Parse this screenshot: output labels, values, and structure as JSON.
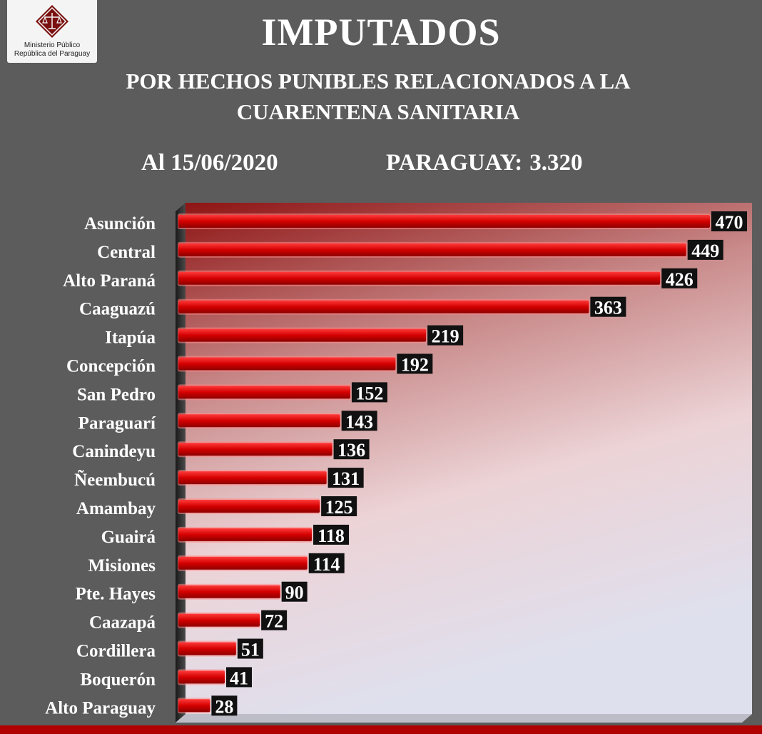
{
  "logo": {
    "line1": "Ministerio Público",
    "line2": "República del Paraguay"
  },
  "header": {
    "title": "IMPUTADOS",
    "subtitle": "POR HECHOS PUNIBLES RELACIONADOS A LA CUARENTENA SANITARIA",
    "date": "Al 15/06/2020",
    "total_label": "PARAGUAY:",
    "total_value": "3.320"
  },
  "colors": {
    "background": "#5c5c5c",
    "bar": "#d40000",
    "label_box": "#111111",
    "bottom_bar": "#b00000"
  },
  "chart_data": {
    "type": "bar",
    "orientation": "horizontal",
    "categories": [
      "Asunción",
      "Central",
      "Alto Paraná",
      "Caaguazú",
      "Itapúa",
      "Concepción",
      "San Pedro",
      "Paraguarí",
      "Canindeyu",
      "Ñeembucú",
      "Amambay",
      "Guairá",
      "Misiones",
      "Pte. Hayes",
      "Caazapá",
      "Cordillera",
      "Boquerón",
      "Alto Paraguay"
    ],
    "values": [
      470,
      449,
      426,
      363,
      219,
      192,
      152,
      143,
      136,
      131,
      125,
      118,
      114,
      90,
      72,
      51,
      41,
      28
    ],
    "xlim": [
      0,
      470
    ],
    "grid": false,
    "legend": "none",
    "data_labels": true
  }
}
